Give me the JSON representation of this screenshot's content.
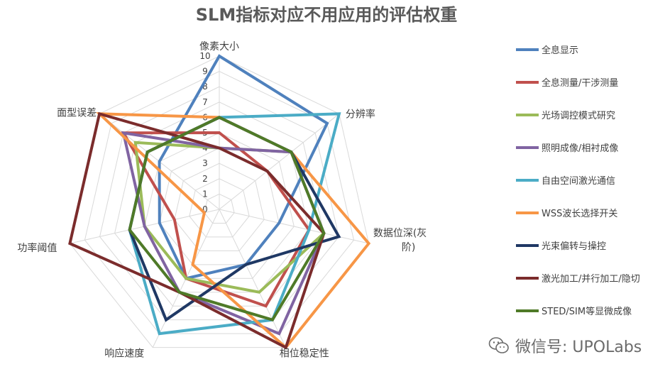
{
  "chart_data": {
    "type": "radar",
    "title": "SLM指标对应不用应用的评估权重",
    "axes": [
      "像素大小",
      "分辨率",
      "数据位深(灰阶)",
      "相位稳定性",
      "响应速度",
      "功率阈值",
      "面型误差"
    ],
    "axis_label_lines": [
      [
        "像素大小"
      ],
      [
        "分辨率"
      ],
      [
        "数据位深(灰",
        "阶)"
      ],
      [
        "相位稳定性"
      ],
      [
        "响应速度"
      ],
      [
        "功率阈值"
      ],
      [
        "面型误差"
      ]
    ],
    "rlim": [
      0,
      10
    ],
    "ticks": [
      "0",
      "1",
      "2",
      "3",
      "4",
      "5",
      "6",
      "7",
      "8",
      "9",
      "10"
    ],
    "grid": true,
    "legend_position": "right",
    "series": [
      {
        "name": "全息显示",
        "color": "#4f81bd",
        "values": [
          10,
          9,
          4,
          4,
          5,
          4,
          5
        ]
      },
      {
        "name": "全息测量/干涉测量",
        "color": "#c0504d",
        "values": [
          5,
          4,
          6,
          7,
          5,
          3,
          8
        ]
      },
      {
        "name": "光场调控模式研究",
        "color": "#9bbb59",
        "values": [
          4,
          6,
          7,
          6,
          5,
          5,
          7
        ]
      },
      {
        "name": "照明成像/相衬成像",
        "color": "#8064a2",
        "values": [
          4,
          6,
          7,
          9,
          6,
          5,
          8
        ]
      },
      {
        "name": "自由空间激光通信",
        "color": "#4bacc6",
        "values": [
          6,
          10,
          6,
          8,
          9,
          6,
          6
        ]
      },
      {
        "name": "WSS波长选择开关",
        "color": "#f79646",
        "values": [
          6,
          6,
          10,
          10,
          4,
          1,
          10
        ]
      },
      {
        "name": "光束偏转与操控",
        "color": "#1f3864",
        "values": [
          6,
          6,
          8,
          4,
          8,
          6,
          6
        ]
      },
      {
        "name": "激光加工/并行加工/隐切",
        "color": "#7b2c2c",
        "values": [
          4,
          4,
          7,
          10,
          6,
          10,
          10
        ]
      },
      {
        "name": "STED/SIM等显微成像",
        "color": "#4f7a28",
        "values": [
          6,
          6,
          7,
          8,
          6,
          6,
          6
        ]
      }
    ]
  },
  "watermark": {
    "text": "微信号: UPOLabs",
    "icon": "wechat-icon"
  }
}
